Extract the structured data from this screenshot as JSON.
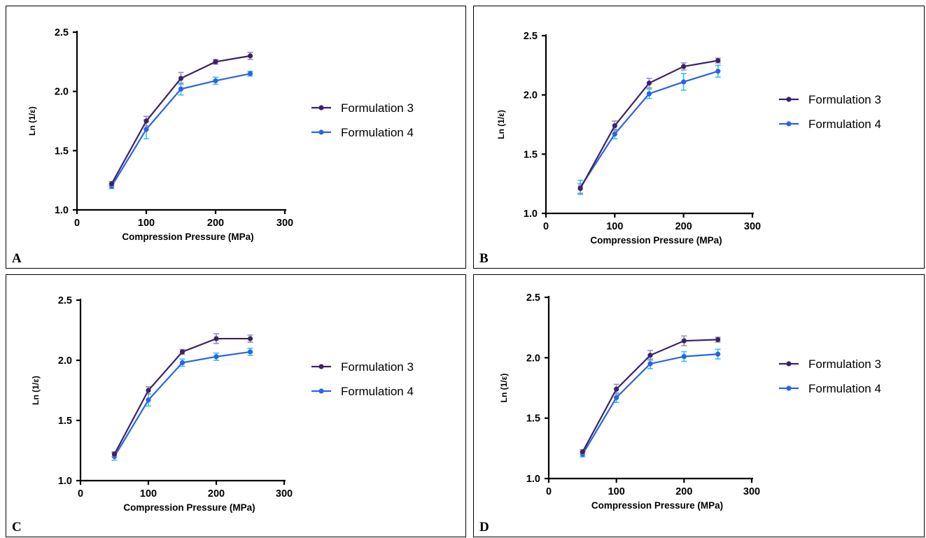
{
  "colors": {
    "formulation3": "#3c2266",
    "formulation3_err": "#a08ac6",
    "formulation4": "#2a63e6",
    "formulation4_err": "#27c7ef"
  },
  "chart_data": [
    {
      "panel": "A",
      "type": "line",
      "xlabel": "Compression Pressure (MPa)",
      "ylabel": "Ln (1/ε)",
      "xlim": [
        0,
        300
      ],
      "ylim": [
        1.0,
        2.5
      ],
      "xticks": [
        "0",
        "100",
        "200",
        "300"
      ],
      "yticks": [
        "1.0",
        "1.5",
        "2.0",
        "2.5"
      ],
      "legend_position": "right",
      "x": [
        50,
        100,
        150,
        200,
        250
      ],
      "series": [
        {
          "name": "Formulation 3",
          "values": [
            1.22,
            1.75,
            2.11,
            2.25,
            2.3
          ],
          "errors": [
            0.02,
            0.04,
            0.05,
            0.02,
            0.03
          ]
        },
        {
          "name": "Formulation 4",
          "values": [
            1.2,
            1.68,
            2.02,
            2.09,
            2.15
          ],
          "errors": [
            0.02,
            0.08,
            0.05,
            0.03,
            0.02
          ]
        }
      ]
    },
    {
      "panel": "B",
      "type": "line",
      "xlabel": "Compression Pressure (MPa)",
      "ylabel": "Ln (1/ε)",
      "xlim": [
        0,
        300
      ],
      "ylim": [
        1.0,
        2.5
      ],
      "xticks": [
        "0",
        "100",
        "200",
        "300"
      ],
      "yticks": [
        "1.0",
        "1.5",
        "2.0",
        "2.5"
      ],
      "legend_position": "right",
      "x": [
        50,
        100,
        150,
        200,
        250
      ],
      "series": [
        {
          "name": "Formulation 3",
          "values": [
            1.21,
            1.74,
            2.1,
            2.24,
            2.29
          ],
          "errors": [
            0.04,
            0.04,
            0.04,
            0.03,
            0.02
          ]
        },
        {
          "name": "Formulation 4",
          "values": [
            1.22,
            1.67,
            2.01,
            2.11,
            2.2
          ],
          "errors": [
            0.06,
            0.04,
            0.04,
            0.07,
            0.05
          ]
        }
      ]
    },
    {
      "panel": "C",
      "type": "line",
      "xlabel": "Compression Pressure (MPa)",
      "ylabel": "Ln (1/ε)",
      "xlim": [
        0,
        300
      ],
      "ylim": [
        1.0,
        2.5
      ],
      "xticks": [
        "0",
        "100",
        "200",
        "300"
      ],
      "yticks": [
        "1.0",
        "1.5",
        "2.0",
        "2.5"
      ],
      "legend_position": "right",
      "x": [
        50,
        100,
        150,
        200,
        250
      ],
      "series": [
        {
          "name": "Formulation 3",
          "values": [
            1.22,
            1.75,
            2.07,
            2.18,
            2.18
          ],
          "errors": [
            0.02,
            0.03,
            0.02,
            0.04,
            0.03
          ]
        },
        {
          "name": "Formulation 4",
          "values": [
            1.2,
            1.67,
            1.98,
            2.03,
            2.07
          ],
          "errors": [
            0.03,
            0.05,
            0.03,
            0.03,
            0.03
          ]
        }
      ]
    },
    {
      "panel": "D",
      "type": "line",
      "xlabel": "Compression Pressure (MPa)",
      "ylabel": "Ln (1/ε)",
      "xlim": [
        0,
        300
      ],
      "ylim": [
        1.0,
        2.5
      ],
      "xticks": [
        "0",
        "100",
        "200",
        "300"
      ],
      "yticks": [
        "1.0",
        "1.5",
        "2.0",
        "2.5"
      ],
      "legend_position": "right",
      "x": [
        50,
        100,
        150,
        200,
        250
      ],
      "series": [
        {
          "name": "Formulation 3",
          "values": [
            1.22,
            1.74,
            2.02,
            2.14,
            2.15
          ],
          "errors": [
            0.02,
            0.04,
            0.04,
            0.04,
            0.02
          ]
        },
        {
          "name": "Formulation 4",
          "values": [
            1.2,
            1.67,
            1.95,
            2.01,
            2.03
          ],
          "errors": [
            0.02,
            0.04,
            0.04,
            0.04,
            0.04
          ]
        }
      ]
    }
  ]
}
